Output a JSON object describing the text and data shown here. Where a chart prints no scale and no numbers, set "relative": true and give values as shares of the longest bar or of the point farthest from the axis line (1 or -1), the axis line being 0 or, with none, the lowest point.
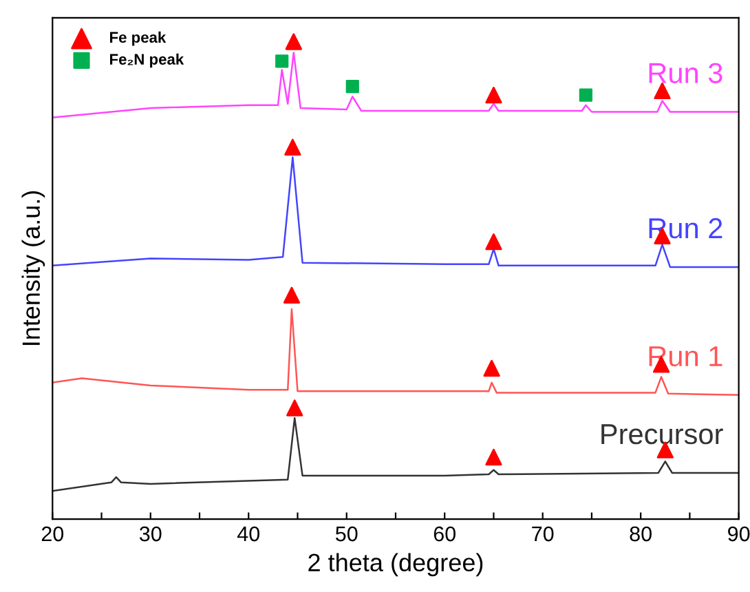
{
  "chart_data": {
    "type": "line",
    "relative": true,
    "xlabel": "2 theta (degree)",
    "ylabel": "Intensity (a.u.)",
    "xlim": [
      20,
      90
    ],
    "xticks": [
      20,
      {
        "value": 25,
        "label": null
      },
      30,
      {
        "value": 35,
        "label": null
      },
      40,
      {
        "value": 45,
        "label": null
      },
      50,
      {
        "value": 55,
        "label": null
      },
      60,
      {
        "value": 65,
        "label": null
      },
      70,
      {
        "value": 75,
        "label": null
      },
      80,
      {
        "value": 85,
        "label": null
      },
      90
    ],
    "grid": false,
    "legend": "top left",
    "marker": "none",
    "line_style": "solid",
    "series": [
      {
        "name": "Precursor",
        "color": "#333333",
        "x": [
          20,
          26,
          26.5,
          27,
          30,
          44,
          44.7,
          45.5,
          60,
          64.5,
          65,
          65.5,
          81.8,
          82.5,
          83.2,
          90
        ],
        "values": [
          0.059,
          0.077,
          0.088,
          0.077,
          0.074,
          0.083,
          0.212,
          0.091,
          0.091,
          0.094,
          0.103,
          0.094,
          0.097,
          0.121,
          0.097,
          0.097
        ]
      },
      {
        "name": "Run 1",
        "color": "#ff5555",
        "x": [
          20,
          23,
          30,
          40,
          44,
          44.4,
          45,
          64.5,
          64.8,
          65.3,
          81.5,
          82.1,
          82.8,
          90
        ],
        "values": [
          0.286,
          0.295,
          0.28,
          0.271,
          0.271,
          0.44,
          0.268,
          0.268,
          0.286,
          0.265,
          0.265,
          0.298,
          0.263,
          0.26
        ]
      },
      {
        "name": "Run 2",
        "color": "#4444ff",
        "x": [
          20,
          30,
          40,
          43.5,
          44.5,
          45.5,
          60,
          64.5,
          65,
          65.5,
          81.5,
          82.2,
          83,
          90
        ],
        "values": [
          0.531,
          0.546,
          0.543,
          0.549,
          0.758,
          0.537,
          0.534,
          0.534,
          0.566,
          0.531,
          0.531,
          0.575,
          0.528,
          0.528
        ]
      },
      {
        "name": "Run 3",
        "color": "#ff44ff",
        "x": [
          20,
          30,
          40,
          43,
          43.4,
          44,
          44.6,
          45.3,
          50,
          50.6,
          51.5,
          64.5,
          65,
          65.5,
          74,
          74.4,
          75,
          81.7,
          82.2,
          83,
          90
        ],
        "values": [
          0.841,
          0.861,
          0.867,
          0.867,
          0.941,
          0.87,
          0.977,
          0.861,
          0.858,
          0.885,
          0.855,
          0.855,
          0.87,
          0.855,
          0.855,
          0.867,
          0.853,
          0.853,
          0.876,
          0.853,
          0.853
        ]
      },
      {
        "name": "Fe peak",
        "type": "scatter",
        "marker": "triangle",
        "color": "#ff0000",
        "x": [
          44.6,
          65,
          82.2,
          44.5,
          65,
          82.2,
          44.4,
          64.8,
          82.1,
          44.7,
          65,
          82.5
        ],
        "values": [
          1.0,
          0.888,
          0.897,
          0.779,
          0.581,
          0.593,
          0.469,
          0.316,
          0.324,
          0.233,
          0.13,
          0.145
        ]
      },
      {
        "name": "Fe₂N peak",
        "type": "scatter",
        "marker": "square",
        "color": "#00b050",
        "x": [
          43.4,
          50.6,
          74.4
        ],
        "values": [
          0.959,
          0.906,
          0.888
        ]
      }
    ]
  }
}
